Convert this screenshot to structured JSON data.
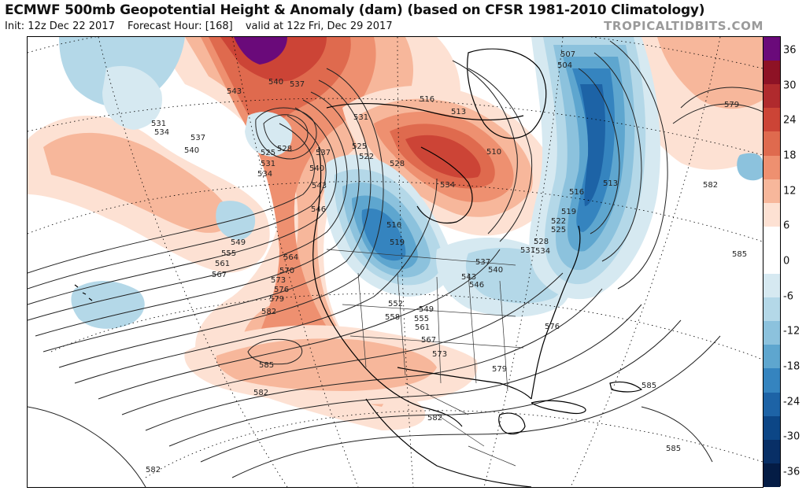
{
  "header": {
    "title": "ECMWF 500mb Geopotential Height & Anomaly (dam) (based on CFSR 1981-2010 Climatology)",
    "init": "Init: 12z Dec 22 2017",
    "forecast_hour": "Forecast Hour: [168]",
    "valid": "valid at 12z Fri, Dec 29 2017",
    "brand": "TROPICALTIDBITS.COM"
  },
  "colorbar": {
    "ticks": [
      "36",
      "30",
      "24",
      "18",
      "12",
      "6",
      "0",
      "-6",
      "-12",
      "-18",
      "-24",
      "-30",
      "-36"
    ],
    "colors": [
      "#6a0a7a",
      "#8e1225",
      "#b02a2d",
      "#cc4436",
      "#df6a4e",
      "#ee9070",
      "#f7b79b",
      "#fde1d3",
      "#ffffff",
      "#ffffff",
      "#d6e9f1",
      "#b4d8e8",
      "#8cc2dd",
      "#5ea6cf",
      "#3584bf",
      "#1d63a6",
      "#0c4686",
      "#082f66",
      "#041c45"
    ]
  },
  "contour_labels": [
    "543",
    "540",
    "537",
    "531",
    "534",
    "537",
    "540",
    "525",
    "528",
    "531",
    "534",
    "537",
    "540",
    "543",
    "546",
    "549",
    "555",
    "561",
    "567",
    "564",
    "570",
    "573",
    "576",
    "579",
    "582",
    "585",
    "582",
    "582",
    "582",
    "531",
    "525",
    "522",
    "516",
    "519",
    "528",
    "534",
    "516",
    "513",
    "510",
    "507",
    "504",
    "513",
    "516",
    "519",
    "522",
    "525",
    "528",
    "531",
    "534",
    "537",
    "540",
    "543",
    "546",
    "552",
    "549",
    "555",
    "558",
    "561",
    "567",
    "573",
    "576",
    "579",
    "579",
    "582",
    "585",
    "585",
    "585"
  ],
  "map": {
    "colors": {
      "positive_light": "#fde1d3",
      "positive_mid": "#f7b79b",
      "positive_strong": "#ee9070",
      "positive_deep": "#df6a4e",
      "positive_dark": "#cc4436",
      "positive_max": "#8e1225",
      "extreme": "#6a0a7a",
      "negative_light": "#d6e9f1",
      "negative_mid": "#b4d8e8",
      "negative_strong": "#8cc2dd",
      "negative_deep": "#5ea6cf",
      "negative_dark": "#3584bf",
      "negative_max": "#1d63a6"
    }
  }
}
